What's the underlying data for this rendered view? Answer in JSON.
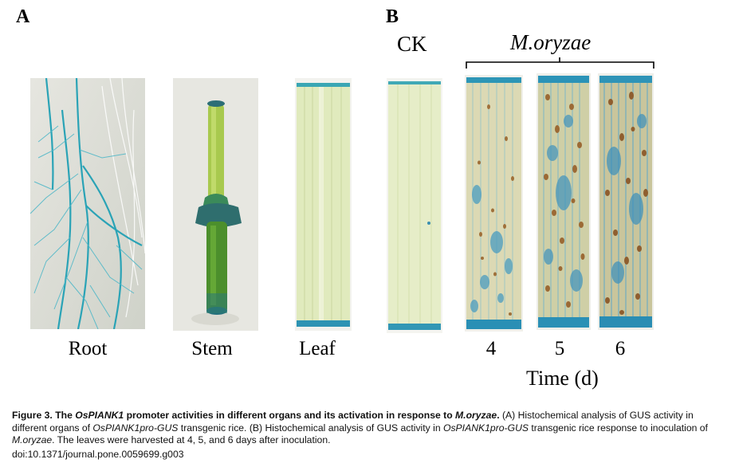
{
  "panels": {
    "a_label": "A",
    "b_label": "B",
    "ck_label": "CK",
    "pathogen_label": "M.oryzae",
    "organ_labels": [
      "Root",
      "Stem",
      "Leaf"
    ],
    "time_values": [
      "4",
      "5",
      "6"
    ],
    "time_axis_label": "Time (d)"
  },
  "caption": {
    "figure_no": "Figure 3.",
    "title_pre": "The ",
    "title_gene": "OsPIANK1",
    "title_mid": " promoter activities in different organs and its activation in response to ",
    "title_pathogen": "M.oryzae",
    "title_end": ".",
    "body_a": " (A) Histochemical analysis of GUS activity in different organs of ",
    "body_construct_a": "OsPIANK1pro-GUS",
    "body_b": " transgenic rice. (B) Histochemical analysis of GUS activity in ",
    "body_construct_b": "OsPIANK1pro-GUS",
    "body_c": " transgenic rice response to inoculation of ",
    "body_pathogen": "M.oryzae",
    "body_d": ". The leaves were harvested at 4, 5, and 6 days after inoculation.",
    "doi": "doi:10.1371/journal.pone.0059699.g003"
  },
  "colors": {
    "gus_blue": "#2aa3b6",
    "leaf_pale": "#e3ebc4",
    "stem_green": "#5e9a2a",
    "lesion_brown": "#a0703a"
  }
}
